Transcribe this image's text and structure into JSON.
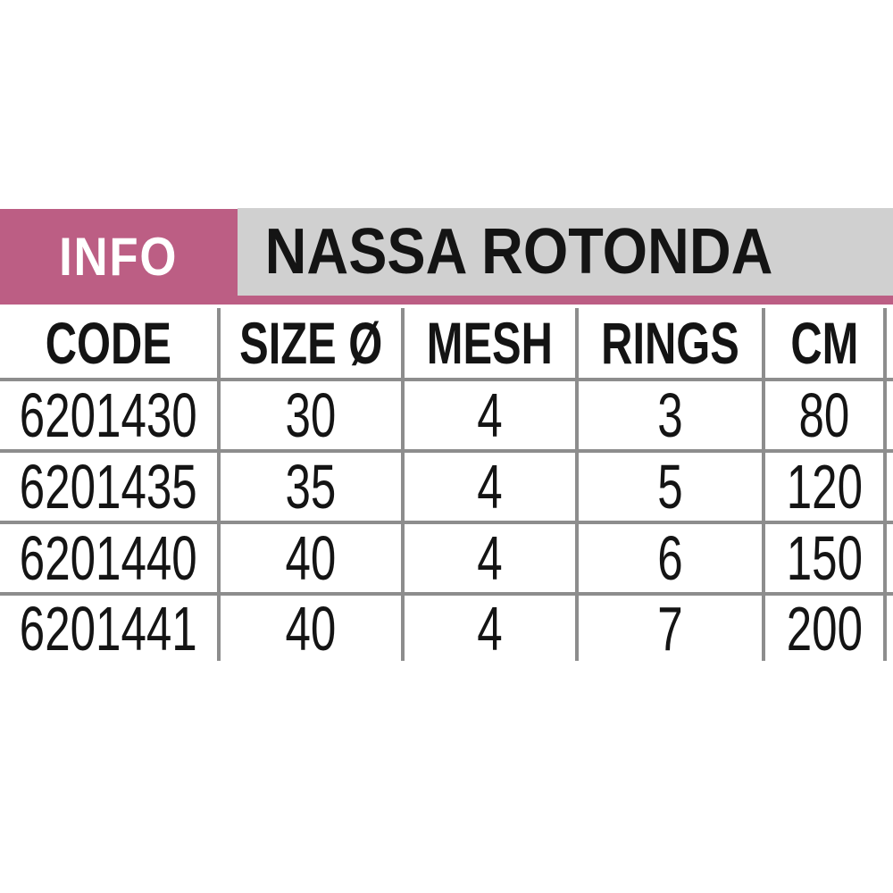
{
  "header": {
    "info_label": "INFO",
    "title": "NASSA ROTONDA",
    "info_bg_color": "#bc5e84",
    "info_text_color": "#ffffff",
    "title_bg_color": "#d0d0d0",
    "title_text_color": "#141414"
  },
  "table": {
    "grid_line_color": "#8d8d8d",
    "columns": [
      "CODE",
      "SIZE Ø",
      "MESH",
      "RINGS",
      "CM"
    ],
    "rows": [
      [
        "6201430",
        "30",
        "4",
        "3",
        "80"
      ],
      [
        "6201435",
        "35",
        "4",
        "5",
        "120"
      ],
      [
        "6201440",
        "40",
        "4",
        "6",
        "150"
      ],
      [
        "6201441",
        "40",
        "4",
        "7",
        "200"
      ]
    ]
  }
}
